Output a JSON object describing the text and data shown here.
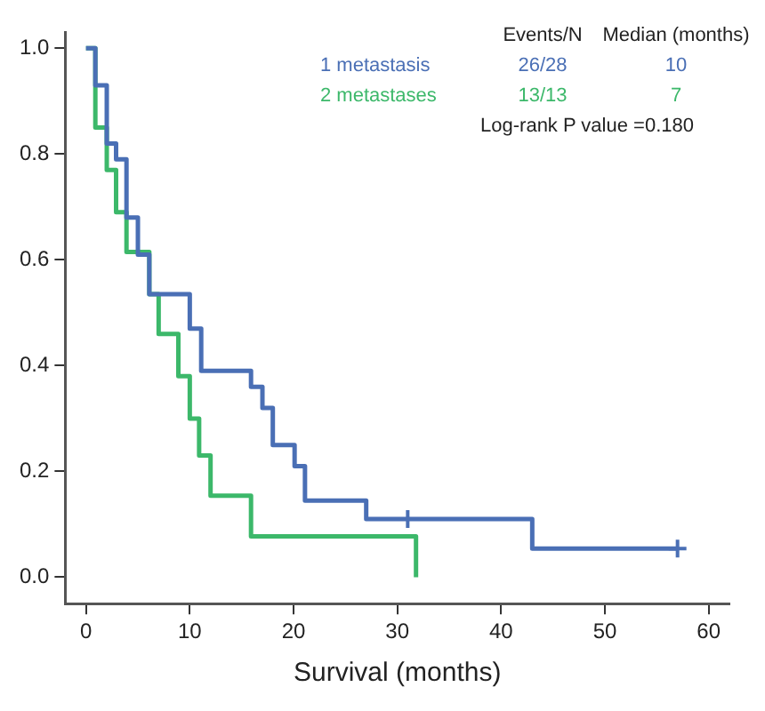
{
  "chart_data": {
    "type": "step",
    "xlabel": "Survival (months)",
    "xlim": [
      -2,
      62
    ],
    "xticks": [
      0,
      10,
      20,
      30,
      40,
      50,
      60
    ],
    "ylim": [
      -0.05,
      1.03
    ],
    "yticks": [
      {
        "value": 0,
        "label": "0.0"
      },
      {
        "value": 0.2,
        "label": "0.2"
      },
      {
        "value": 0.4,
        "label": "0.4"
      },
      {
        "value": 0.6,
        "label": "0.6"
      },
      {
        "value": 0.8,
        "label": "0.8"
      },
      {
        "value": 1,
        "label": "1.0"
      }
    ],
    "grid": false,
    "legend": "top right",
    "marker": "none",
    "line_style": "solid",
    "series": [
      {
        "name": "1 metastasis",
        "color": "#4a6fb5",
        "x": [
          0,
          0.9,
          2,
          2.9,
          3.9,
          5,
          6.1,
          10,
          11.1,
          15.9,
          17,
          18,
          20.1,
          21.1,
          27,
          43,
          57
        ],
        "values": [
          1,
          0.93,
          0.82,
          0.79,
          0.68,
          0.61,
          0.535,
          0.47,
          0.39,
          0.36,
          0.32,
          0.25,
          0.21,
          0.145,
          0.11,
          0.054,
          0.054
        ]
      },
      {
        "name": "2 metastases",
        "color": "#3cb86a",
        "x": [
          0,
          0.9,
          2,
          2.9,
          3.9,
          6.1,
          7,
          8.9,
          10,
          10.9,
          12,
          15.9,
          31.8
        ],
        "values": [
          1,
          0.85,
          0.77,
          0.69,
          0.615,
          0.535,
          0.46,
          0.38,
          0.3,
          0.23,
          0.154,
          0.077,
          0
        ]
      },
      {
        "type": "scatter",
        "color": "#4a6fb5",
        "marker": "cross",
        "x": [
          31,
          57
        ],
        "values": [
          0.11,
          0.054
        ]
      }
    ],
    "annotations": [
      "Events/N",
      "Median (months)",
      "26/28",
      "10",
      "13/13",
      "7",
      "Log-rank P value =0.180"
    ]
  }
}
